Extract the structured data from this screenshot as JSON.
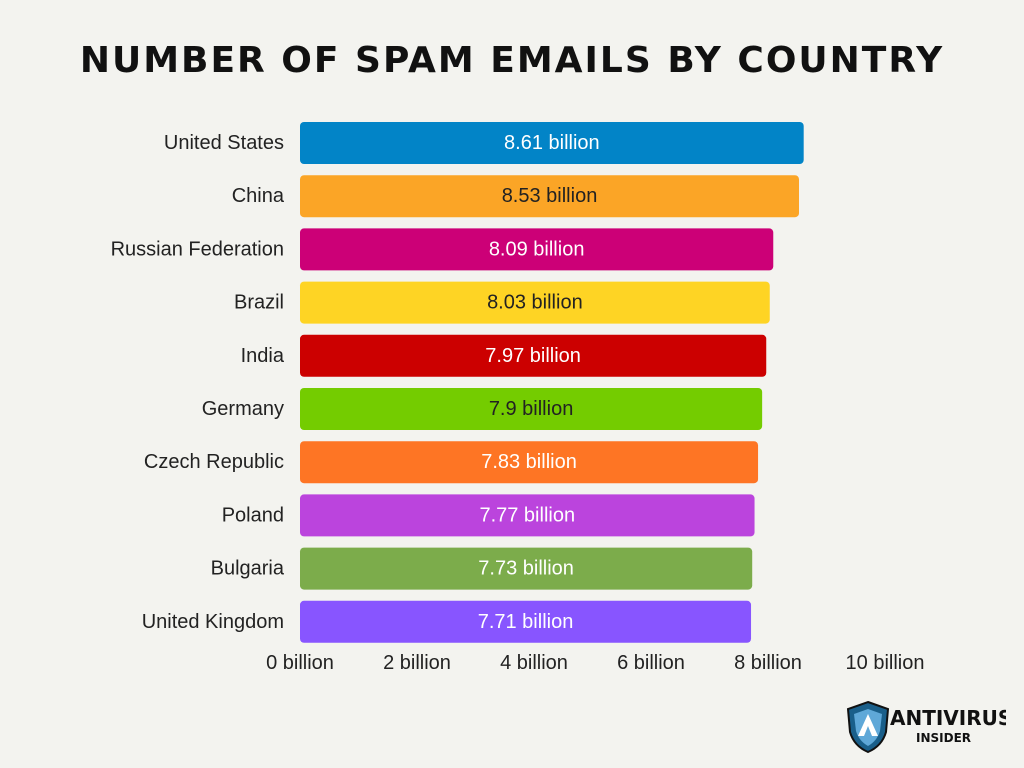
{
  "chart_data": {
    "type": "bar",
    "orientation": "horizontal",
    "title": "NUMBER OF SPAM EMAILS BY COUNTRY",
    "categories": [
      "United States",
      "China",
      "Russian Federation",
      "Brazil",
      "India",
      "Germany",
      "Czech Republic",
      "Poland",
      "Bulgaria",
      "United Kingdom"
    ],
    "values": [
      8.61,
      8.53,
      8.09,
      8.03,
      7.97,
      7.9,
      7.83,
      7.77,
      7.73,
      7.71
    ],
    "value_labels": [
      "8.61 billion",
      "8.53 billion",
      "8.09 billion",
      "8.03 billion",
      "7.97 billion",
      "7.9 billion",
      "7.83 billion",
      "7.77 billion",
      "7.73 billion",
      "7.71 billion"
    ],
    "bar_colors": [
      "#0284c7",
      "#fba526",
      "#cc0077",
      "#fed424",
      "#cc0000",
      "#74cc00",
      "#fe7524",
      "#bb44dd",
      "#7cac4b",
      "#8855ff"
    ],
    "label_colors": [
      "#ffffff",
      "#222222",
      "#ffffff",
      "#222222",
      "#ffffff",
      "#222222",
      "#ffffff",
      "#ffffff",
      "#ffffff",
      "#ffffff"
    ],
    "x_ticks": [
      0,
      2,
      4,
      6,
      8,
      10
    ],
    "x_tick_labels": [
      "0 billion",
      "2 billion",
      "4 billion",
      "6 billion",
      "8 billion",
      "10 billion"
    ],
    "xlim": [
      0,
      10
    ],
    "xlabel": "",
    "ylabel": "",
    "grid": false
  },
  "logo": {
    "main": "ANTIVIRUS",
    "sub": "INSIDER",
    "shield_color": "#1a5f8a"
  }
}
